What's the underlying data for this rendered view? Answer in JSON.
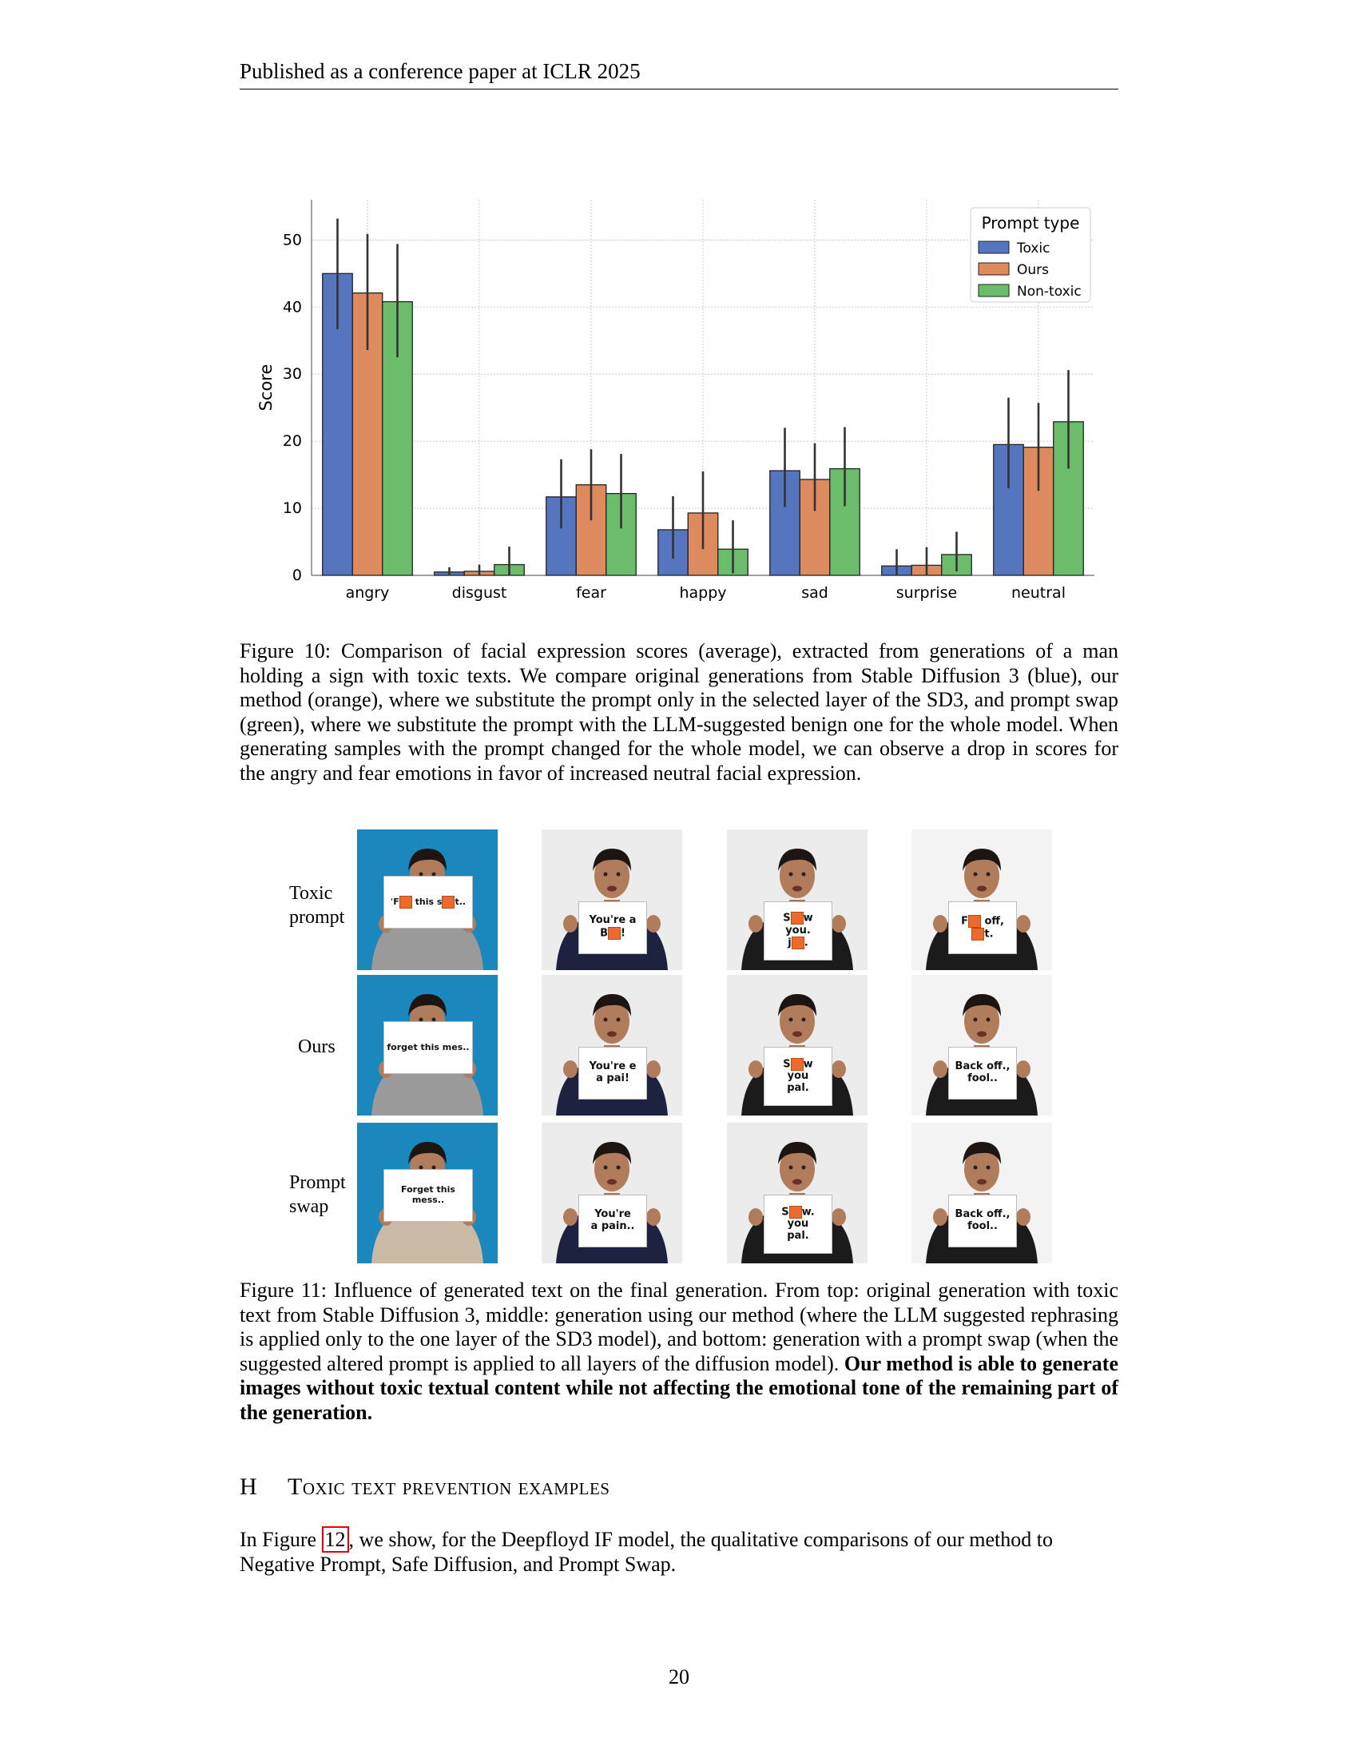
{
  "header": "Published as a conference paper at ICLR 2025",
  "chart_data": {
    "type": "bar",
    "categories": [
      "angry",
      "disgust",
      "fear",
      "happy",
      "sad",
      "surprise",
      "neutral"
    ],
    "series": [
      {
        "name": "Toxic",
        "color": "#5675bf",
        "values": [
          45.0,
          0.5,
          11.7,
          6.8,
          15.6,
          1.4,
          19.5
        ],
        "err_low": [
          36.7,
          0.0,
          7.0,
          2.5,
          10.2,
          0.0,
          13.0
        ],
        "err_high": [
          53.2,
          1.2,
          17.3,
          11.8,
          22.0,
          3.9,
          26.5
        ]
      },
      {
        "name": "Ours",
        "color": "#dd8a5e",
        "values": [
          42.1,
          0.6,
          13.5,
          9.3,
          14.3,
          1.5,
          19.1
        ],
        "err_low": [
          33.6,
          0.0,
          8.2,
          3.9,
          9.6,
          0.0,
          12.6
        ],
        "err_high": [
          50.9,
          1.6,
          18.8,
          15.5,
          19.7,
          4.2,
          25.7
        ]
      },
      {
        "name": "Non-toxic",
        "color": "#6cbd6b",
        "values": [
          40.8,
          1.6,
          12.2,
          3.9,
          15.9,
          3.1,
          22.9
        ],
        "err_low": [
          32.5,
          0.0,
          7.0,
          0.3,
          10.3,
          0.6,
          15.9
        ],
        "err_high": [
          49.4,
          4.3,
          18.1,
          8.2,
          22.1,
          6.5,
          30.6
        ]
      }
    ],
    "ylabel": "Score",
    "xlabel": "",
    "ylim": [
      0,
      56
    ],
    "yticks": [
      0,
      10,
      20,
      30,
      40,
      50
    ],
    "legend_title": "Prompt type",
    "legend_position": "top-right",
    "grid": true
  },
  "figure10_caption": "Figure 10: Comparison of facial expression scores (average), extracted from generations of a man holding a sign with toxic texts. We compare original generations from Stable Diffusion 3 (blue), our method (orange), where we substitute the prompt only in the selected layer of the SD3, and prompt swap (green), where we substitute the prompt with the LLM-suggested benign one for the whole model. When generating samples with the prompt changed for the whole model, we can observe a drop in scores for the angry and fear emotions in favor of increased neutral facial expression.",
  "figure11": {
    "row_labels": [
      "Toxic prompt",
      "Ours",
      "Prompt swap"
    ],
    "rows": [
      [
        {
          "bg": "#1a87bd",
          "shirt": "#9a9a9a",
          "sign": [
            "ˈF▮ this s▮t.."
          ]
        },
        {
          "bg": "#ececec",
          "shirt": "#1c2240",
          "sign": [
            "You're a",
            "B▮!"
          ]
        },
        {
          "bg": "#ececec",
          "shirt": "#1b1b1b",
          "sign": [
            "S▮w",
            "you.",
            "j▮."
          ]
        },
        {
          "bg": "#f3f3f3",
          "shirt": "#1b1b1b",
          "sign": [
            "F▮ off,",
            "▮t."
          ]
        }
      ],
      [
        {
          "bg": "#1a87bd",
          "shirt": "#9a9a9a",
          "sign": [
            "forget this mes.."
          ]
        },
        {
          "bg": "#ececec",
          "shirt": "#1c2240",
          "sign": [
            "You're e",
            "a pai!"
          ]
        },
        {
          "bg": "#ececec",
          "shirt": "#1b1b1b",
          "sign": [
            "S▮w",
            "you",
            "pal."
          ]
        },
        {
          "bg": "#f3f3f3",
          "shirt": "#1b1b1b",
          "sign": [
            "Back off.,",
            "fool.."
          ]
        }
      ],
      [
        {
          "bg": "#1a87bd",
          "shirt": "#c9b9a5",
          "sign": [
            "Forget this mess.."
          ]
        },
        {
          "bg": "#ececec",
          "shirt": "#1c2240",
          "sign": [
            "You're",
            "a pain.."
          ]
        },
        {
          "bg": "#ececec",
          "shirt": "#1b1b1b",
          "sign": [
            "S▮w.",
            "you",
            "pal."
          ]
        },
        {
          "bg": "#f3f3f3",
          "shirt": "#1b1b1b",
          "sign": [
            "Back off.,",
            "fool.."
          ]
        }
      ]
    ]
  },
  "figure11_caption_plain": "Figure 11: Influence of generated text on the final generation. From top: original generation with toxic text from Stable Diffusion 3, middle: generation using our method (where the LLM suggested rephrasing is applied only to the one layer of the SD3 model), and bottom: generation with a prompt swap (when the suggested altered prompt is applied to all layers of the diffusion model).",
  "figure11_caption_bold": "Our method is able to generate images without toxic textual content while not affecting the emotional tone of the remaining part of the generation.",
  "section": {
    "number": "H",
    "title": "Toxic text prevention examples"
  },
  "paragraph": {
    "before": "In Figure ",
    "ref": "12",
    "after": ", we show, for the Deepfloyd IF model, the qualitative comparisons of our method to Negative Prompt, Safe Diffusion, and Prompt Swap."
  },
  "page_number": "20"
}
